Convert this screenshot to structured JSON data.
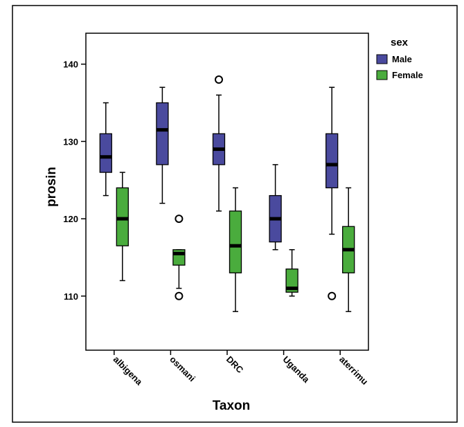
{
  "colors": {
    "male": "#4a4a9e",
    "female": "#4aac3d"
  },
  "chart_data": {
    "type": "boxplot",
    "xlabel": "Taxon",
    "ylabel": "prosin",
    "ylim": [
      103,
      144
    ],
    "yticks": [
      110,
      120,
      130,
      140
    ],
    "grid": false,
    "legend": {
      "title": "sex",
      "position": "top-right"
    },
    "categories": [
      "albigena",
      "osmani",
      "DRC",
      "Uganda",
      "aterrimu"
    ],
    "series": [
      {
        "name": "Male",
        "color": "#4a4a9e",
        "boxes": [
          {
            "min": 123,
            "q1": 126,
            "median": 128,
            "q3": 131,
            "max": 135,
            "outliers": []
          },
          {
            "min": 122,
            "q1": 127,
            "median": 131.5,
            "q3": 135,
            "max": 137,
            "outliers": []
          },
          {
            "min": 121,
            "q1": 127,
            "median": 129,
            "q3": 131,
            "max": 136,
            "outliers": [
              138
            ]
          },
          {
            "min": 116,
            "q1": 117,
            "median": 120,
            "q3": 123,
            "max": 127,
            "outliers": []
          },
          {
            "min": 118,
            "q1": 124,
            "median": 127,
            "q3": 131,
            "max": 137,
            "outliers": [
              110
            ]
          }
        ]
      },
      {
        "name": "Female",
        "color": "#4aac3d",
        "boxes": [
          {
            "min": 112,
            "q1": 116.5,
            "median": 120,
            "q3": 124,
            "max": 126,
            "outliers": []
          },
          {
            "min": 111,
            "q1": 114,
            "median": 115.5,
            "q3": 116,
            "max": 116,
            "outliers": [
              120,
              110
            ]
          },
          {
            "min": 108,
            "q1": 113,
            "median": 116.5,
            "q3": 121,
            "max": 124,
            "outliers": []
          },
          {
            "min": 110,
            "q1": 110.5,
            "median": 111,
            "q3": 113.5,
            "max": 116,
            "outliers": []
          },
          {
            "min": 108,
            "q1": 113,
            "median": 116,
            "q3": 119,
            "max": 124,
            "outliers": []
          }
        ]
      }
    ]
  }
}
